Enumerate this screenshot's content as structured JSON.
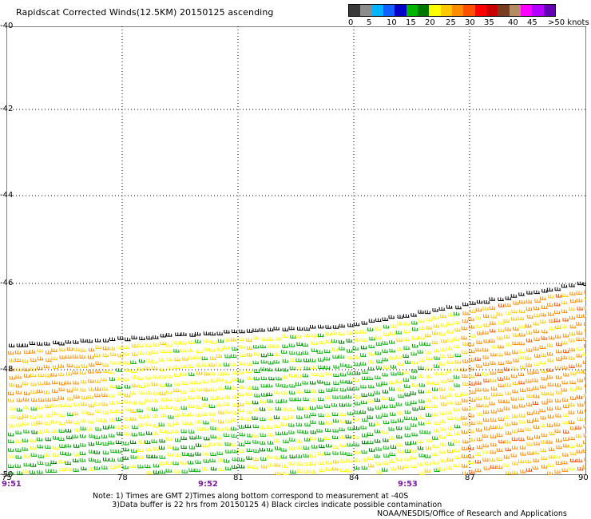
{
  "title": "Rapidscat Corrected Winds(12.5KM) 20150125 ascending",
  "legend": {
    "colors": [
      "#3a3a3a",
      "#8c8c8c",
      "#00b4ff",
      "#1060ff",
      "#0000c8",
      "#00b400",
      "#007800",
      "#ffff00",
      "#ffc800",
      "#ff8c00",
      "#ff5000",
      "#ff0000",
      "#c80000",
      "#783c1e",
      "#b48c64",
      "#ff00ff",
      "#b400ff",
      "#6400b4"
    ],
    "labels": [
      "0",
      "5",
      "10",
      "15",
      "20",
      "25",
      "30",
      "35",
      "40",
      "45",
      ">50 knots"
    ]
  },
  "axes": {
    "lat_labels": [
      "-40",
      "-42",
      "-44",
      "-46",
      "-48",
      "-50"
    ],
    "lon_labels": [
      "75",
      "78",
      "81",
      "84",
      "87",
      "90"
    ],
    "time_labels": [
      "9:51",
      "9:52",
      "9:53"
    ]
  },
  "note_line1": "Note: 1) Times are GMT 2)Times along bottom correspond to measurement at -40S",
  "note_line2": "3)Data buffer is 22 hrs from 20150125 4) Black circles indicate possible contamination",
  "credit": "NOAA/NESDIS/Office of Research and Applications"
}
